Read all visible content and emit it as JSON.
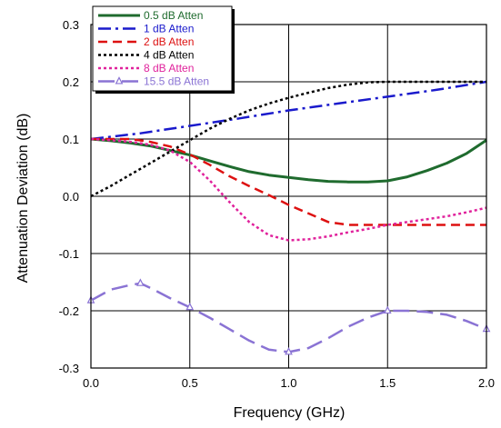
{
  "chart_data": {
    "type": "line",
    "title": "",
    "xlabel": "Frequency (GHz)",
    "ylabel": "Attenuation Deviation (dB)",
    "xlim": [
      0.0,
      2.0
    ],
    "ylim": [
      -0.3,
      0.3
    ],
    "x_ticks": [
      "0.0",
      "0.5",
      "1.0",
      "1.5",
      "2.0"
    ],
    "y_ticks": [
      "-0.3",
      "-0.2",
      "-0.1",
      "0.0",
      "0.1",
      "0.2",
      "0.3"
    ],
    "grid": true,
    "legend_position": "top-left",
    "series": [
      {
        "name": "0.5 dB Atten",
        "color": "#1f6b2e",
        "dash": "solid",
        "x": [
          0.0,
          0.1,
          0.2,
          0.3,
          0.4,
          0.5,
          0.6,
          0.7,
          0.8,
          0.9,
          1.0,
          1.1,
          1.2,
          1.3,
          1.4,
          1.5,
          1.6,
          1.7,
          1.8,
          1.9,
          2.0
        ],
        "y": [
          0.1,
          0.097,
          0.093,
          0.088,
          0.08,
          0.072,
          0.062,
          0.052,
          0.043,
          0.037,
          0.033,
          0.029,
          0.026,
          0.025,
          0.025,
          0.027,
          0.034,
          0.045,
          0.058,
          0.075,
          0.098
        ]
      },
      {
        "name": "1 dB Atten",
        "color": "#1a1acc",
        "dash": "dashdot",
        "x": [
          0.0,
          0.25,
          0.5,
          0.75,
          1.0,
          1.25,
          1.5,
          1.75,
          2.0
        ],
        "y": [
          0.1,
          0.11,
          0.123,
          0.136,
          0.15,
          0.162,
          0.174,
          0.186,
          0.2
        ]
      },
      {
        "name": "2 dB Atten",
        "color": "#dd1111",
        "dash": "dash",
        "x": [
          0.0,
          0.1,
          0.2,
          0.3,
          0.4,
          0.5,
          0.6,
          0.7,
          0.8,
          0.9,
          1.0,
          1.1,
          1.2,
          1.3,
          1.5,
          1.75,
          2.0
        ],
        "y": [
          0.1,
          0.1,
          0.1,
          0.095,
          0.087,
          0.073,
          0.055,
          0.035,
          0.018,
          0.002,
          -0.015,
          -0.03,
          -0.045,
          -0.05,
          -0.05,
          -0.05,
          -0.05
        ]
      },
      {
        "name": "4 dB Atten",
        "color": "#000000",
        "dash": "dot",
        "x": [
          0.0,
          0.1,
          0.2,
          0.3,
          0.4,
          0.5,
          0.6,
          0.7,
          0.8,
          0.9,
          1.0,
          1.1,
          1.2,
          1.3,
          1.4,
          1.5,
          1.75,
          2.0
        ],
        "y": [
          0.0,
          0.018,
          0.038,
          0.058,
          0.078,
          0.098,
          0.118,
          0.135,
          0.15,
          0.162,
          0.172,
          0.181,
          0.189,
          0.195,
          0.199,
          0.2,
          0.2,
          0.2
        ]
      },
      {
        "name": "8 dB Atten",
        "color": "#e0229c",
        "dash": "dot",
        "x": [
          0.0,
          0.1,
          0.2,
          0.3,
          0.4,
          0.5,
          0.6,
          0.7,
          0.8,
          0.9,
          1.0,
          1.1,
          1.2,
          1.3,
          1.4,
          1.5,
          1.6,
          1.7,
          1.8,
          1.9,
          2.0
        ],
        "y": [
          0.1,
          0.098,
          0.095,
          0.09,
          0.08,
          0.06,
          0.028,
          -0.01,
          -0.045,
          -0.068,
          -0.077,
          -0.075,
          -0.07,
          -0.063,
          -0.057,
          -0.05,
          -0.045,
          -0.04,
          -0.035,
          -0.028,
          -0.02
        ]
      },
      {
        "name": "15.5 dB Atten",
        "color": "#8a73d4",
        "dash": "longdash",
        "marker": "triangle",
        "marker_x": [
          0.0,
          0.25,
          0.5,
          1.0,
          1.5,
          2.0
        ],
        "marker_y": [
          -0.182,
          -0.152,
          -0.194,
          -0.272,
          -0.2,
          -0.232
        ],
        "x": [
          0.0,
          0.1,
          0.2,
          0.25,
          0.3,
          0.4,
          0.5,
          0.6,
          0.7,
          0.8,
          0.9,
          1.0,
          1.1,
          1.2,
          1.3,
          1.4,
          1.5,
          1.6,
          1.7,
          1.8,
          1.9,
          2.0
        ],
        "y": [
          -0.182,
          -0.163,
          -0.155,
          -0.152,
          -0.16,
          -0.178,
          -0.194,
          -0.212,
          -0.232,
          -0.252,
          -0.268,
          -0.272,
          -0.265,
          -0.248,
          -0.228,
          -0.212,
          -0.2,
          -0.2,
          -0.202,
          -0.207,
          -0.218,
          -0.232
        ]
      }
    ]
  }
}
